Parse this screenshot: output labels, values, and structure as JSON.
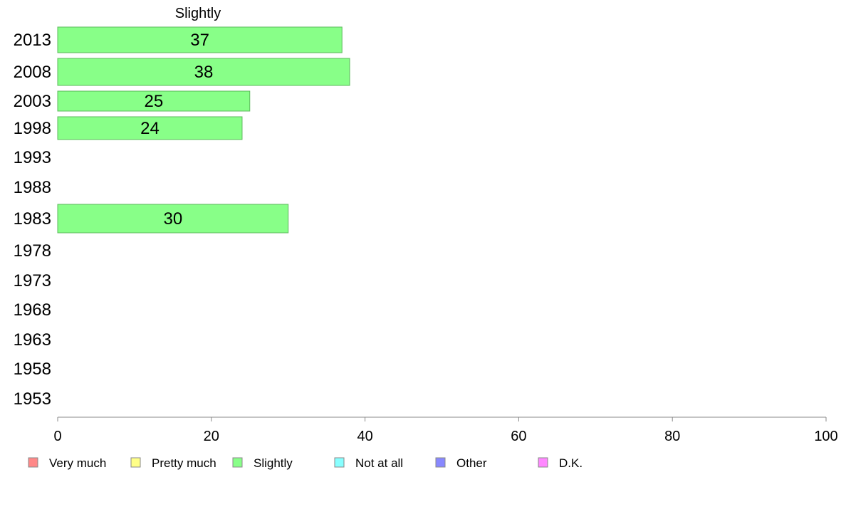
{
  "chart_data": {
    "type": "bar",
    "orientation": "horizontal",
    "header_label": "Slightly",
    "categories": [
      "2013",
      "2008",
      "2003",
      "1998",
      "1993",
      "1988",
      "1983",
      "1978",
      "1973",
      "1968",
      "1963",
      "1958",
      "1953"
    ],
    "series": [
      {
        "name": "Slightly",
        "values": [
          37,
          38,
          25,
          24,
          null,
          null,
          30,
          null,
          null,
          null,
          null,
          null,
          null
        ]
      }
    ],
    "value_labels": [
      "37",
      "38",
      "25",
      "24",
      "",
      "",
      "30",
      "",
      "",
      "",
      "",
      "",
      ""
    ],
    "xlim": [
      0,
      100
    ],
    "x_ticks": [
      0,
      20,
      40,
      60,
      80,
      100
    ],
    "x_tick_labels": [
      "0",
      "20",
      "40",
      "60",
      "80",
      "100"
    ],
    "grid": false,
    "bar_color": "#88ff88",
    "bar_edge_color": "#5cb85c",
    "legend": {
      "placement": "bottom",
      "entries": [
        {
          "label": "Very much",
          "color": "#ff8888"
        },
        {
          "label": "Pretty much",
          "color": "#ffff88"
        },
        {
          "label": "Slightly",
          "color": "#88ff88"
        },
        {
          "label": "Not at all",
          "color": "#88ffff"
        },
        {
          "label": "Other",
          "color": "#8888ff"
        },
        {
          "label": "D.K.",
          "color": "#ff88ff"
        }
      ]
    }
  }
}
